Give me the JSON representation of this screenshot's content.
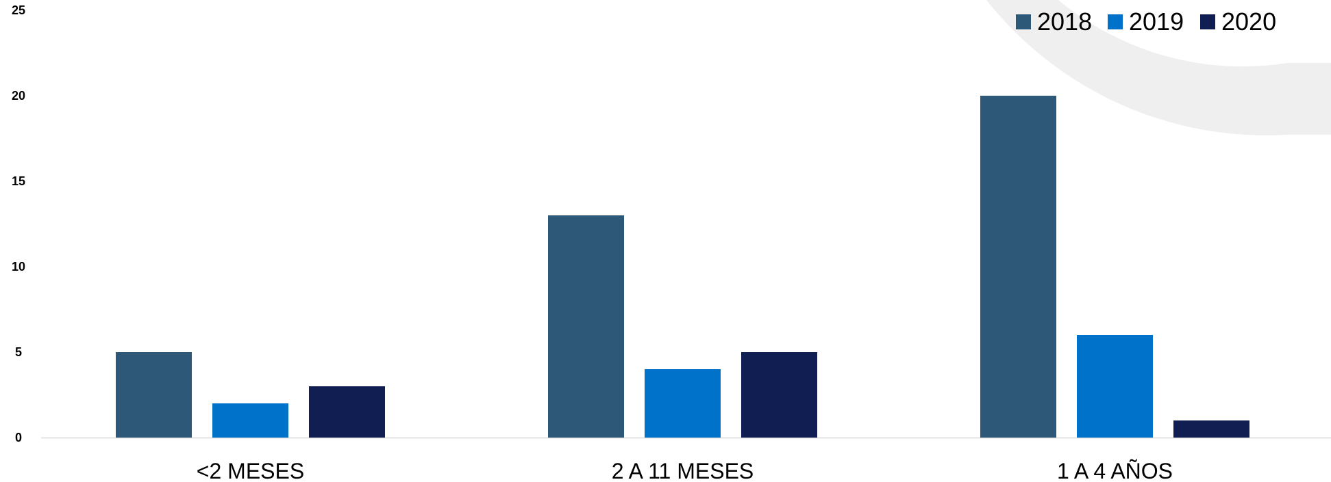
{
  "chart_data": {
    "type": "bar",
    "title": "",
    "xlabel": "",
    "ylabel": "",
    "categories": [
      "<2 MESES",
      "2 A 11 MESES",
      "1 A 4 AÑOS"
    ],
    "series": [
      {
        "name": "2018",
        "values": [
          5,
          13,
          20
        ],
        "color": "#2e5878"
      },
      {
        "name": "2019",
        "values": [
          2,
          4,
          6
        ],
        "color": "#0072c9"
      },
      {
        "name": "2020",
        "values": [
          3,
          5,
          1
        ],
        "color": "#101e52"
      }
    ],
    "ylim": [
      0,
      25
    ],
    "yticks": [
      0,
      5,
      10,
      15,
      20,
      25
    ],
    "grid": false,
    "legend_position": "top-right",
    "background_decoration_color": "#efefef",
    "axis_line_color": "#d9d9d9"
  }
}
